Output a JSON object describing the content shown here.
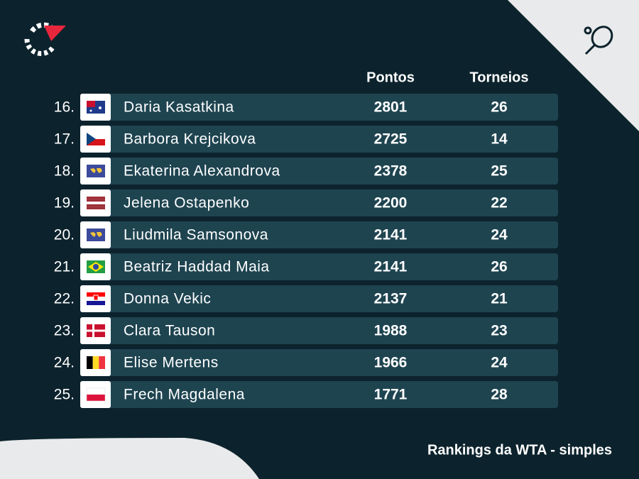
{
  "header": {
    "columns": [
      "Pontos",
      "Torneios"
    ]
  },
  "table": {
    "rows": [
      [
        "16.",
        "Daria Kasatkina",
        2801,
        26
      ],
      [
        "17.",
        "Barbora Krejcikova",
        2725,
        14
      ],
      [
        "18.",
        "Ekaterina Alexandrova",
        2378,
        25
      ],
      [
        "19.",
        "Jelena Ostapenko",
        2200,
        22
      ],
      [
        "20.",
        "Liudmila Samsonova",
        2141,
        24
      ],
      [
        "21.",
        "Beatriz Haddad Maia",
        2141,
        26
      ],
      [
        "22.",
        "Donna Vekic",
        2137,
        21
      ],
      [
        "23.",
        "Clara Tauson",
        1988,
        23
      ],
      [
        "24.",
        "Elise Mertens",
        1966,
        24
      ],
      [
        "25.",
        "Frech Magdalena",
        1771,
        28
      ]
    ]
  },
  "footer": {
    "title": "Rankings da WTA - simples"
  }
}
